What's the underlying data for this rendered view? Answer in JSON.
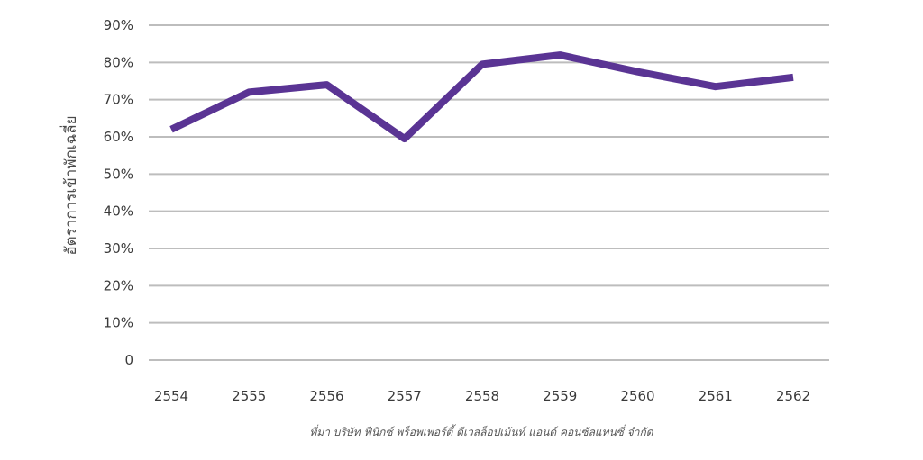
{
  "chart_data": {
    "type": "line",
    "categories": [
      "2554",
      "2555",
      "2556",
      "2557",
      "2558",
      "2559",
      "2560",
      "2561",
      "2562"
    ],
    "series": [
      {
        "values": [
          62,
          72,
          74,
          59.5,
          79.5,
          82,
          77.5,
          73.5,
          76
        ]
      }
    ],
    "ylabel": "อัตราการเข้าพักเฉลี่ย",
    "xlabel": "",
    "ylim": [
      0,
      90
    ],
    "yticks": [
      0,
      10,
      20,
      30,
      40,
      50,
      60,
      70,
      80,
      90
    ],
    "ytick_labels": [
      "0",
      "10%",
      "20%",
      "30%",
      "40%",
      "50%",
      "60%",
      "70%",
      "80%",
      "90%"
    ],
    "grid": true,
    "colors": {
      "line": "#5a3494",
      "grid": "#bdbdbd"
    }
  },
  "source": "ที่มา บริษัท ฟีนิกซ์ พร็อพเพอร์ตี้ ดีเวลล็อปเม้นท์ แอนด์ คอนซัลแทนซี่ จำกัด"
}
